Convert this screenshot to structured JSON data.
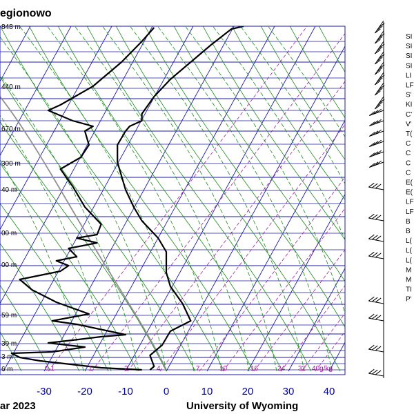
{
  "chart_data": {
    "type": "line",
    "title": "egionowo",
    "footer_left": "ar 2023",
    "footer_right": "University of Wyoming",
    "x_ticks": [
      "-30",
      "-20",
      "-10",
      "0",
      "10",
      "20",
      "30",
      "40"
    ],
    "xlim": [
      -40,
      45
    ],
    "pressure_labels": [
      "848 m",
      "440 m",
      "670 m",
      "300 m",
      "40 m",
      "00 m",
      "00 m",
      "59 m",
      "30 m",
      "3 m",
      "6 m"
    ],
    "mixing_ratio_labels": [
      "0.1",
      "1",
      "2",
      "4",
      "7",
      "10",
      "16",
      "24",
      "32",
      "40g/kg"
    ],
    "index_labels": [
      "SI",
      "SI",
      "SI",
      "SI",
      "LI",
      "LF",
      "S'",
      "KI",
      "C'",
      "V'",
      "T(",
      "C",
      "C",
      "C",
      "C",
      "E(",
      "E(",
      "LF",
      "LF",
      "B",
      "B",
      "L(",
      "L(",
      "L(",
      "M",
      "M",
      "TI",
      "P'"
    ],
    "series": [
      {
        "name": "",
        "kind": "temperature",
        "points": [
          [
            -4,
            536
          ],
          [
            -3,
            531
          ],
          [
            -4,
            515
          ],
          [
            -1,
            500
          ],
          [
            1,
            480
          ],
          [
            6,
            465
          ],
          [
            4,
            440
          ],
          [
            1,
            415
          ],
          [
            0,
            395
          ],
          [
            0,
            365
          ],
          [
            -2,
            345
          ],
          [
            -6,
            320
          ],
          [
            -8,
            300
          ],
          [
            -10,
            275
          ],
          [
            -11,
            255
          ],
          [
            -12,
            235
          ],
          [
            -12,
            210
          ],
          [
            -10,
            190
          ],
          [
            -9,
            183
          ],
          [
            -6,
            175
          ],
          [
            -6,
            165
          ],
          [
            -3,
            140
          ],
          [
            1,
            115
          ],
          [
            6,
            90
          ],
          [
            11,
            65
          ],
          [
            16,
            42
          ],
          [
            19,
            38
          ]
        ]
      },
      {
        "name": "",
        "kind": "dewpoint",
        "points": [
          [
            -6,
            536
          ],
          [
            -16,
            533
          ],
          [
            -28,
            525
          ],
          [
            -31,
            523
          ],
          [
            -36,
            518
          ],
          [
            -38,
            512
          ],
          [
            -28,
            510
          ],
          [
            -20,
            503
          ],
          [
            -29,
            497
          ],
          [
            -23,
            493
          ],
          [
            -16,
            488
          ],
          [
            -10,
            485
          ],
          [
            -14,
            480
          ],
          [
            -22,
            470
          ],
          [
            -28,
            465
          ],
          [
            -19,
            455
          ],
          [
            -27,
            438
          ],
          [
            -33,
            420
          ],
          [
            -36,
            405
          ],
          [
            -26,
            393
          ],
          [
            -24,
            385
          ],
          [
            -27,
            378
          ],
          [
            -22,
            372
          ],
          [
            -24,
            360
          ],
          [
            -17,
            352
          ],
          [
            -22,
            345
          ],
          [
            -17,
            340
          ],
          [
            -16,
            325
          ],
          [
            -20,
            300
          ],
          [
            -23,
            270
          ],
          [
            -26,
            245
          ],
          [
            -21,
            228
          ],
          [
            -19,
            210
          ],
          [
            -20,
            190
          ],
          [
            -18,
            183
          ],
          [
            -23,
            175
          ],
          [
            -29,
            160
          ],
          [
            -26,
            152
          ],
          [
            -18,
            125
          ],
          [
            -11,
            90
          ],
          [
            -6,
            60
          ],
          [
            -3,
            40
          ]
        ]
      }
    ],
    "colors": {
      "isobar": "#1a1aa8",
      "isotherm": "#1a1aa8",
      "dry_adiabat": "#1a8a1a",
      "moist_adiabat": "#1a8a1a",
      "mixing_ratio": "#a020a0",
      "profile": "#000000",
      "parcel": "#909090"
    }
  }
}
